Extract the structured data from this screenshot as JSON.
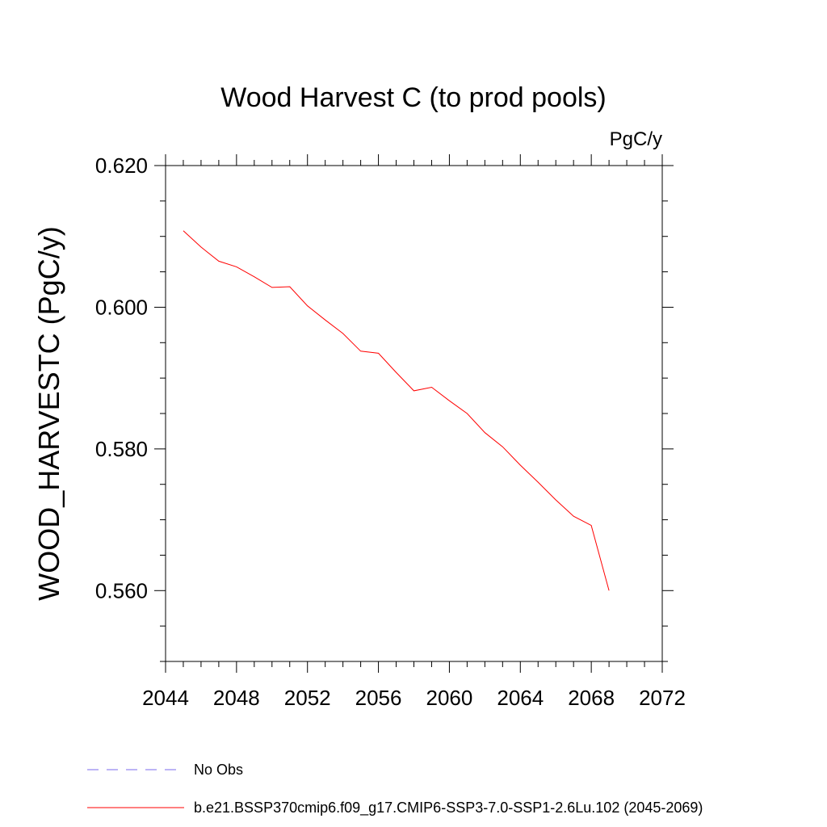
{
  "chart_data": {
    "type": "line",
    "title": "Wood Harvest C (to prod pools)",
    "units_label": "PgC/y",
    "xlabel": "",
    "ylabel": "WOOD_HARVESTC  (PgC/y)",
    "xlim": [
      2044,
      2072
    ],
    "ylim": [
      0.55,
      0.62
    ],
    "x_ticks": [
      2044,
      2048,
      2052,
      2056,
      2060,
      2064,
      2068,
      2072
    ],
    "x_tick_labels": [
      "2044",
      "2048",
      "2052",
      "2056",
      "2060",
      "2064",
      "2068",
      "2072"
    ],
    "x_minor_step": 1,
    "y_ticks": [
      0.56,
      0.58,
      0.6,
      0.62
    ],
    "y_tick_labels": [
      "0.560",
      "0.580",
      "0.600",
      "0.620"
    ],
    "y_minor_step": 0.005,
    "grid": false,
    "legend_position": "bottom-left",
    "series": [
      {
        "name": "b.e21.BSSP370cmip6.f09_g17.CMIP6-SSP3-7.0-SSP1-2.6Lu.102 (2045-2069)",
        "color": "#ff0000",
        "style": "solid",
        "x": [
          2045,
          2046,
          2047,
          2048,
          2049,
          2050,
          2051,
          2052,
          2053,
          2054,
          2055,
          2056,
          2057,
          2058,
          2059,
          2060,
          2061,
          2062,
          2063,
          2064,
          2065,
          2066,
          2067,
          2068,
          2069
        ],
        "y": [
          0.6108,
          0.6085,
          0.6065,
          0.6057,
          0.6043,
          0.6028,
          0.6029,
          0.6002,
          0.5982,
          0.5963,
          0.5938,
          0.5935,
          0.5908,
          0.5882,
          0.5887,
          0.5868,
          0.585,
          0.5823,
          0.5803,
          0.5777,
          0.5753,
          0.5728,
          0.5705,
          0.5692,
          0.56
        ]
      }
    ],
    "legend": [
      {
        "label": "No Obs",
        "color": "#7b68ee",
        "style": "dashed"
      },
      {
        "label": "b.e21.BSSP370cmip6.f09_g17.CMIP6-SSP3-7.0-SSP1-2.6Lu.102 (2045-2069)",
        "color": "#ff0000",
        "style": "solid"
      }
    ]
  }
}
